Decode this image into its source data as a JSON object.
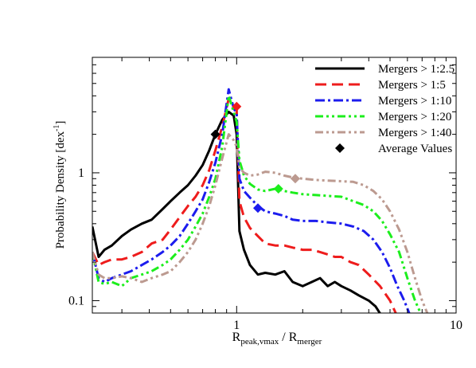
{
  "chart_data": {
    "type": "line",
    "xscale": "log",
    "yscale": "log",
    "xlim": [
      0.22,
      10
    ],
    "ylim": [
      0.08,
      8
    ],
    "ylabel": "Probability Density [dex",
    "ylabel_sup": "-1",
    "ylabel_tail": "]",
    "xlabel_main": "R",
    "xlabel_sub1": "peak,vmax",
    "xlabel_mid": " / R",
    "xlabel_sub2": "merger",
    "x_ticks": [
      {
        "value": 1,
        "label": "1"
      },
      {
        "value": 10,
        "label": "10"
      }
    ],
    "y_ticks": [
      {
        "value": 0.1,
        "label": "0.1"
      },
      {
        "value": 1,
        "label": "1"
      }
    ],
    "legend_position": "top-right",
    "series": [
      {
        "name": "Mergers > 1:2.5",
        "color": "#000000",
        "dash": "solid",
        "x": [
          0.22,
          0.235,
          0.25,
          0.27,
          0.3,
          0.33,
          0.37,
          0.41,
          0.46,
          0.5,
          0.55,
          0.6,
          0.65,
          0.7,
          0.75,
          0.8,
          0.86,
          0.92,
          0.97,
          1.0,
          1.03,
          1.08,
          1.15,
          1.25,
          1.35,
          1.5,
          1.65,
          1.8,
          2.0,
          2.2,
          2.4,
          2.6,
          2.8,
          3.0,
          3.3,
          3.6,
          4.0,
          4.3,
          4.6
        ],
        "y": [
          0.38,
          0.22,
          0.25,
          0.27,
          0.32,
          0.36,
          0.4,
          0.43,
          0.52,
          0.6,
          0.7,
          0.8,
          0.95,
          1.15,
          1.5,
          2.0,
          2.6,
          3.0,
          2.8,
          2.0,
          0.35,
          0.25,
          0.19,
          0.16,
          0.165,
          0.16,
          0.17,
          0.14,
          0.13,
          0.14,
          0.15,
          0.13,
          0.14,
          0.13,
          0.12,
          0.11,
          0.1,
          0.09,
          0.075
        ]
      },
      {
        "name": "Mergers > 1:5",
        "color": "#ee1c1c",
        "dash": "long-dash",
        "x": [
          0.22,
          0.235,
          0.25,
          0.27,
          0.3,
          0.33,
          0.37,
          0.41,
          0.46,
          0.5,
          0.55,
          0.6,
          0.65,
          0.7,
          0.75,
          0.8,
          0.86,
          0.92,
          0.97,
          1.0,
          1.03,
          1.08,
          1.15,
          1.25,
          1.35,
          1.5,
          1.65,
          1.8,
          2.0,
          2.2,
          2.4,
          2.6,
          2.8,
          3.0,
          3.3,
          3.6,
          4.0,
          4.5,
          5.0,
          5.4
        ],
        "y": [
          0.24,
          0.19,
          0.2,
          0.21,
          0.21,
          0.22,
          0.24,
          0.28,
          0.3,
          0.36,
          0.45,
          0.55,
          0.65,
          0.8,
          1.05,
          1.5,
          2.3,
          3.8,
          3.3,
          3.1,
          0.6,
          0.45,
          0.37,
          0.32,
          0.28,
          0.27,
          0.27,
          0.26,
          0.25,
          0.25,
          0.24,
          0.23,
          0.22,
          0.22,
          0.2,
          0.19,
          0.16,
          0.13,
          0.1,
          0.075
        ]
      },
      {
        "name": "Mergers > 1:10",
        "color": "#1c1cee",
        "dash": "dash-dot",
        "x": [
          0.22,
          0.235,
          0.25,
          0.27,
          0.3,
          0.33,
          0.37,
          0.41,
          0.46,
          0.5,
          0.55,
          0.6,
          0.65,
          0.7,
          0.75,
          0.8,
          0.86,
          0.92,
          0.97,
          1.0,
          1.03,
          1.08,
          1.15,
          1.25,
          1.35,
          1.5,
          1.65,
          1.8,
          2.0,
          2.3,
          2.6,
          3.0,
          3.4,
          3.8,
          4.2,
          4.6,
          5.0,
          5.4,
          5.8,
          6.2
        ],
        "y": [
          0.24,
          0.15,
          0.14,
          0.15,
          0.16,
          0.17,
          0.19,
          0.21,
          0.24,
          0.27,
          0.32,
          0.4,
          0.5,
          0.62,
          0.85,
          1.2,
          2.0,
          4.5,
          3.2,
          2.9,
          0.9,
          0.72,
          0.64,
          0.55,
          0.5,
          0.48,
          0.46,
          0.43,
          0.42,
          0.42,
          0.41,
          0.4,
          0.38,
          0.35,
          0.3,
          0.24,
          0.18,
          0.13,
          0.1,
          0.075
        ]
      },
      {
        "name": "Mergers > 1:20",
        "color": "#1cee1c",
        "dash": "dash-dot-dot",
        "x": [
          0.22,
          0.235,
          0.25,
          0.27,
          0.3,
          0.33,
          0.37,
          0.41,
          0.46,
          0.5,
          0.55,
          0.6,
          0.65,
          0.7,
          0.75,
          0.8,
          0.86,
          0.92,
          0.97,
          1.0,
          1.03,
          1.08,
          1.15,
          1.25,
          1.35,
          1.5,
          1.65,
          1.8,
          2.0,
          2.3,
          2.6,
          3.0,
          3.4,
          3.8,
          4.2,
          4.6,
          5.0,
          5.5,
          6.0,
          6.5,
          7.0
        ],
        "y": [
          0.24,
          0.14,
          0.135,
          0.14,
          0.13,
          0.15,
          0.16,
          0.17,
          0.19,
          0.21,
          0.25,
          0.3,
          0.38,
          0.48,
          0.65,
          0.9,
          1.6,
          4.0,
          3.0,
          2.5,
          1.25,
          0.95,
          0.82,
          0.74,
          0.72,
          0.75,
          0.72,
          0.7,
          0.68,
          0.67,
          0.66,
          0.65,
          0.6,
          0.56,
          0.5,
          0.42,
          0.33,
          0.24,
          0.15,
          0.1,
          0.075
        ]
      },
      {
        "name": "Mergers > 1:40",
        "color": "#bc9a90",
        "dash": "dash-dot-dot",
        "x": [
          0.22,
          0.235,
          0.25,
          0.27,
          0.3,
          0.33,
          0.37,
          0.41,
          0.46,
          0.5,
          0.55,
          0.6,
          0.65,
          0.7,
          0.75,
          0.8,
          0.86,
          0.92,
          0.97,
          1.0,
          1.03,
          1.08,
          1.15,
          1.25,
          1.35,
          1.5,
          1.65,
          1.8,
          2.0,
          2.3,
          2.6,
          3.0,
          3.4,
          3.8,
          4.2,
          4.6,
          5.0,
          5.5,
          6.0,
          6.5,
          7.0,
          7.5
        ],
        "y": [
          0.24,
          0.16,
          0.15,
          0.15,
          0.155,
          0.15,
          0.14,
          0.15,
          0.16,
          0.17,
          0.2,
          0.24,
          0.3,
          0.4,
          0.55,
          0.8,
          1.3,
          2.0,
          1.8,
          1.6,
          1.1,
          1.0,
          0.95,
          0.97,
          1.02,
          1.0,
          0.95,
          0.92,
          0.9,
          0.88,
          0.87,
          0.86,
          0.85,
          0.8,
          0.72,
          0.62,
          0.5,
          0.36,
          0.24,
          0.15,
          0.1,
          0.075
        ]
      }
    ],
    "average_values": {
      "name": "Average Values",
      "points": [
        {
          "x": 0.8,
          "y": 2.0,
          "color": "#000000"
        },
        {
          "x": 1.0,
          "y": 3.3,
          "color": "#ee1c1c"
        },
        {
          "x": 1.25,
          "y": 0.53,
          "color": "#1c1cee"
        },
        {
          "x": 1.55,
          "y": 0.75,
          "color": "#1cee1c"
        },
        {
          "x": 1.85,
          "y": 0.9,
          "color": "#bc9a90"
        }
      ]
    }
  }
}
